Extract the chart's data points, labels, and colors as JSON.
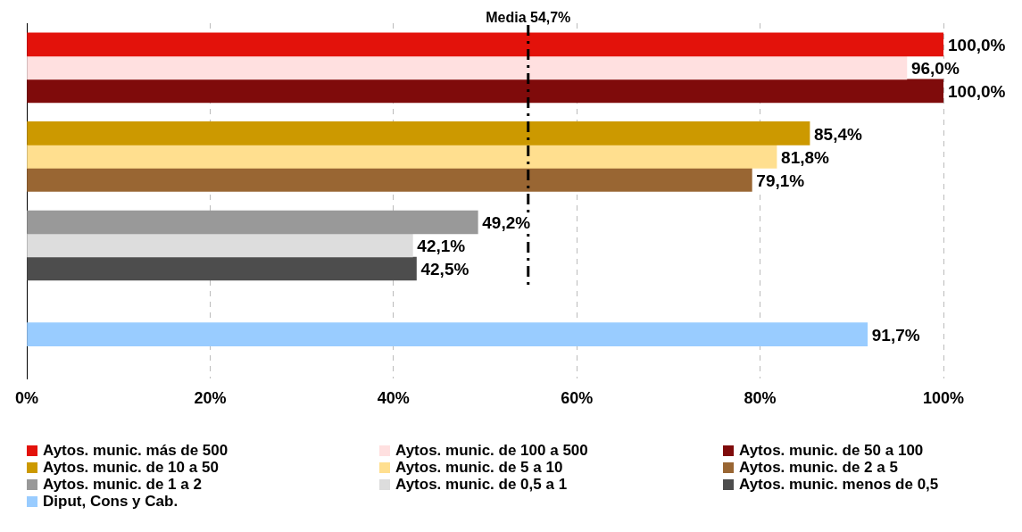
{
  "chart_data": {
    "type": "bar",
    "orientation": "horizontal",
    "categories": [
      null,
      null,
      null,
      null
    ],
    "series": [
      {
        "name": "Aytos. munic. más de 500",
        "color": "#e3120b",
        "values": [
          100.0,
          null,
          null,
          null
        ],
        "value_labels": [
          "100,0%",
          null,
          null,
          null
        ]
      },
      {
        "name": "Aytos. munic. de 100 a 500",
        "color": "#ffe0e0",
        "values": [
          96.0,
          null,
          null,
          null
        ],
        "value_labels": [
          "96,0%",
          null,
          null,
          null
        ]
      },
      {
        "name": "Aytos. munic. de 50 a 100",
        "color": "#7f0b0b",
        "values": [
          100.0,
          null,
          null,
          null
        ],
        "value_labels": [
          "100,0%",
          null,
          null,
          null
        ]
      },
      {
        "name": "Aytos. munic. de 10 a 50",
        "color": "#cc9900",
        "values": [
          null,
          85.4,
          null,
          null
        ],
        "value_labels": [
          null,
          "85,4%",
          null,
          null
        ]
      },
      {
        "name": "Aytos. munic. de 5 a 10",
        "color": "#ffdf8f",
        "values": [
          null,
          81.8,
          null,
          null
        ],
        "value_labels": [
          null,
          "81,8%",
          null,
          null
        ]
      },
      {
        "name": "Aytos. munic. de 2 a 5",
        "color": "#996633",
        "values": [
          null,
          79.1,
          null,
          null
        ],
        "value_labels": [
          null,
          "79,1%",
          null,
          null
        ]
      },
      {
        "name": "Aytos. munic. de 1 a 2",
        "color": "#999999",
        "values": [
          null,
          null,
          49.2,
          null
        ],
        "value_labels": [
          null,
          null,
          "49,2%",
          null
        ]
      },
      {
        "name": "Aytos. munic. de 0,5 a 1",
        "color": "#dddddd",
        "values": [
          null,
          null,
          42.1,
          null
        ],
        "value_labels": [
          null,
          null,
          "42,1%",
          null
        ]
      },
      {
        "name": "Aytos. munic. menos de 0,5",
        "color": "#4d4d4d",
        "values": [
          null,
          null,
          42.5,
          null
        ],
        "value_labels": [
          null,
          null,
          "42,5%",
          null
        ]
      },
      {
        "name": "Diput, Cons y Cab.",
        "color": "#99ccff",
        "values": [
          null,
          null,
          null,
          91.7
        ],
        "value_labels": [
          null,
          null,
          null,
          "91,7%"
        ]
      }
    ],
    "xlim": [
      0,
      100
    ],
    "xticks": [
      {
        "value": 0,
        "label": "0%"
      },
      {
        "value": 20,
        "label": "20%"
      },
      {
        "value": 40,
        "label": "40%"
      },
      {
        "value": 60,
        "label": "60%"
      },
      {
        "value": 80,
        "label": "80%"
      },
      {
        "value": 100,
        "label": "100%"
      }
    ],
    "ref_lines": [
      {
        "axis": "x",
        "value": 54.7,
        "label": "Media 54,7%",
        "line_style": "dashed",
        "color": "#000000"
      }
    ],
    "grid": "x",
    "legend": "bottom"
  }
}
